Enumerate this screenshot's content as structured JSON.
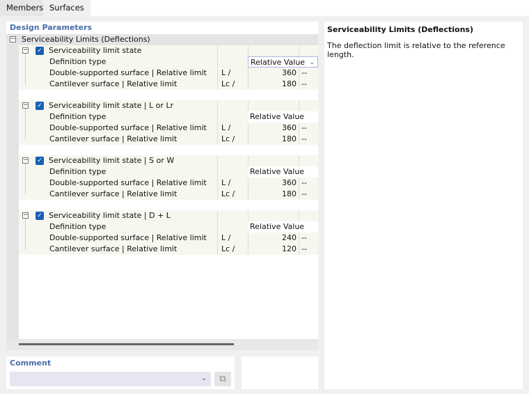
{
  "tabs": [
    {
      "label": "Members"
    },
    {
      "label": "Surfaces"
    }
  ],
  "design_parameters": {
    "title": "Design Parameters",
    "root": "Serviceability Limits (Deflections)",
    "groups": [
      {
        "label": "Serviceability limit state",
        "checked": true,
        "definition_label": "Definition type",
        "definition_value": "Relative Value",
        "double_label": "Double-supported surface | Relative limit",
        "double_symbol": "L /",
        "double_value": "360",
        "double_unit": "--",
        "cant_label": "Cantilever surface | Relative limit",
        "cant_symbol": "Lc /",
        "cant_value": "180",
        "cant_unit": "--"
      },
      {
        "label": "Serviceability limit state | L or Lr",
        "checked": true,
        "definition_label": "Definition type",
        "definition_value": "Relative Value",
        "double_label": "Double-supported surface | Relative limit",
        "double_symbol": "L /",
        "double_value": "360",
        "double_unit": "--",
        "cant_label": "Cantilever surface | Relative limit",
        "cant_symbol": "Lc /",
        "cant_value": "180",
        "cant_unit": "--"
      },
      {
        "label": "Serviceability limit state | S or W",
        "checked": true,
        "definition_label": "Definition type",
        "definition_value": "Relative Value",
        "double_label": "Double-supported surface | Relative limit",
        "double_symbol": "L /",
        "double_value": "360",
        "double_unit": "--",
        "cant_label": "Cantilever surface | Relative limit",
        "cant_symbol": "Lc /",
        "cant_value": "180",
        "cant_unit": "--"
      },
      {
        "label": "Serviceability limit state | D + L",
        "checked": true,
        "definition_label": "Definition type",
        "definition_value": "Relative Value",
        "double_label": "Double-supported surface | Relative limit",
        "double_symbol": "L /",
        "double_value": "240",
        "double_unit": "--",
        "cant_label": "Cantilever surface | Relative limit",
        "cant_symbol": "Lc /",
        "cant_value": "120",
        "cant_unit": "--"
      }
    ]
  },
  "comment": {
    "title": "Comment",
    "value": ""
  },
  "info": {
    "title": "Serviceability Limits (Deflections)",
    "text": "The deflection limit is relative to the reference length."
  },
  "colors": {
    "accent": "#4a6ea9",
    "checkbox": "#1a5fb4"
  }
}
